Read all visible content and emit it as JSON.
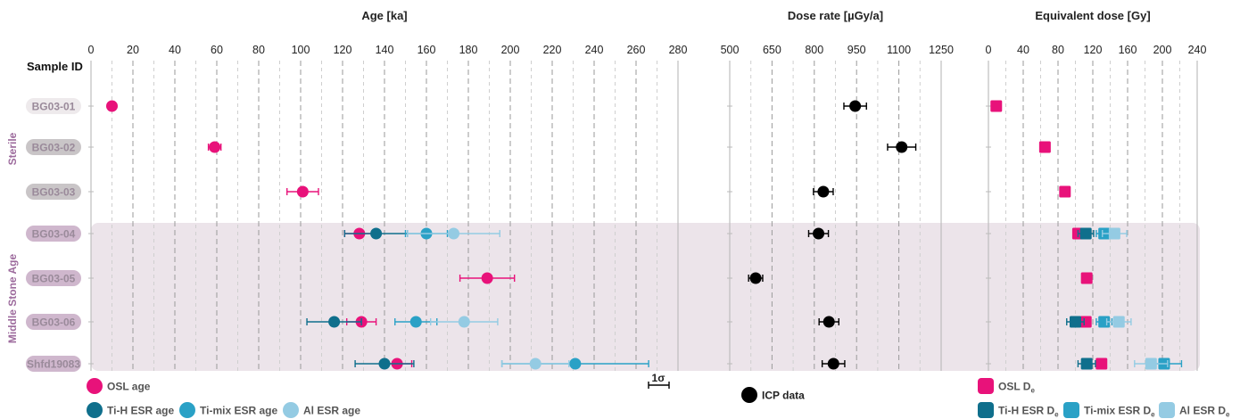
{
  "chart_data": {
    "type": "scatter",
    "row_header": "Sample ID",
    "groups": [
      {
        "name": "Sterile",
        "samples": [
          "BG03-01",
          "BG03-02",
          "BG03-03"
        ]
      },
      {
        "name": "Middle Stone Age",
        "samples": [
          "BG03-04",
          "BG03-05",
          "BG03-06",
          "Shfd19083"
        ]
      }
    ],
    "samples": [
      "BG03-01",
      "BG03-02",
      "BG03-03",
      "BG03-04",
      "BG03-05",
      "BG03-06",
      "Shfd19083"
    ],
    "panels": [
      {
        "id": "age",
        "title": "Age [ka]",
        "xlim": [
          0,
          280
        ],
        "ticks": [
          0,
          20,
          40,
          60,
          80,
          100,
          120,
          140,
          160,
          180,
          200,
          220,
          240,
          260,
          280
        ],
        "grid": true,
        "scale_bar_label": "1σ",
        "series": [
          {
            "name": "OSL age",
            "color": "#e8127a",
            "marker": "circle",
            "points": [
              {
                "sample": "BG03-01",
                "value": 10,
                "err": 0
              },
              {
                "sample": "BG03-02",
                "value": 59,
                "err": 3
              },
              {
                "sample": "BG03-03",
                "value": 101,
                "err": 7.5
              },
              {
                "sample": "BG03-04",
                "value": 128,
                "err": 7
              },
              {
                "sample": "BG03-05",
                "value": 189,
                "err": 13
              },
              {
                "sample": "BG03-06",
                "value": 129,
                "err": 7
              },
              {
                "sample": "Shfd19083",
                "value": 146,
                "err": 7
              }
            ]
          },
          {
            "name": "Ti-H ESR age",
            "color": "#0f6f8c",
            "marker": "circle",
            "points": [
              {
                "sample": "BG03-04",
                "value": 136,
                "err": 15
              },
              {
                "sample": "BG03-06",
                "value": 116,
                "err": 13
              },
              {
                "sample": "Shfd19083",
                "value": 140,
                "err": 14
              }
            ]
          },
          {
            "name": "Ti-mix ESR age",
            "color": "#2aa1c6",
            "marker": "circle",
            "points": [
              {
                "sample": "BG03-04",
                "value": 160,
                "err": 10
              },
              {
                "sample": "BG03-06",
                "value": 155,
                "err": 10
              },
              {
                "sample": "Shfd19083",
                "value": 231,
                "err": 35
              }
            ]
          },
          {
            "name": "Al ESR age",
            "color": "#94cbe3",
            "marker": "circle",
            "points": [
              {
                "sample": "BG03-04",
                "value": 173,
                "err": 22
              },
              {
                "sample": "BG03-06",
                "value": 178,
                "err": 16
              },
              {
                "sample": "Shfd19083",
                "value": 212,
                "err": 16
              }
            ]
          }
        ]
      },
      {
        "id": "dose_rate",
        "title": "Dose rate [µGy/a]",
        "xlim": [
          500,
          1250
        ],
        "ticks": [
          500,
          650,
          800,
          950,
          1100,
          1250
        ],
        "grid": true,
        "series": [
          {
            "name": "ICP data",
            "color": "#000000",
            "marker": "circle",
            "points": [
              {
                "sample": "BG03-01",
                "value": 945,
                "err": 40
              },
              {
                "sample": "BG03-02",
                "value": 1110,
                "err": 50
              },
              {
                "sample": "BG03-03",
                "value": 832,
                "err": 35
              },
              {
                "sample": "BG03-04",
                "value": 815,
                "err": 35
              },
              {
                "sample": "BG03-05",
                "value": 592,
                "err": 25
              },
              {
                "sample": "BG03-06",
                "value": 852,
                "err": 35
              },
              {
                "sample": "Shfd19083",
                "value": 868,
                "err": 40
              }
            ]
          }
        ]
      },
      {
        "id": "equivalent_dose",
        "title": "Equivalent dose [Gy]",
        "xlim": [
          0,
          240
        ],
        "ticks": [
          0,
          40,
          80,
          120,
          160,
          200,
          240
        ],
        "grid": true,
        "series": [
          {
            "name": "OSL De",
            "color": "#e8127a",
            "marker": "square",
            "points": [
              {
                "sample": "BG03-01",
                "value": 9,
                "err": 0
              },
              {
                "sample": "BG03-02",
                "value": 65,
                "err": 0
              },
              {
                "sample": "BG03-03",
                "value": 88,
                "err": 0
              },
              {
                "sample": "BG03-04",
                "value": 103,
                "err": 0
              },
              {
                "sample": "BG03-05",
                "value": 113,
                "err": 0
              },
              {
                "sample": "BG03-06",
                "value": 112,
                "err": 0
              },
              {
                "sample": "Shfd19083",
                "value": 130,
                "err": 0
              }
            ]
          },
          {
            "name": "Ti-H ESR De",
            "color": "#0f6f8c",
            "marker": "square",
            "points": [
              {
                "sample": "BG03-04",
                "value": 112,
                "err": 9
              },
              {
                "sample": "BG03-06",
                "value": 100,
                "err": 10
              },
              {
                "sample": "Shfd19083",
                "value": 113,
                "err": 10
              }
            ]
          },
          {
            "name": "Ti-mix ESR De",
            "color": "#2aa1c6",
            "marker": "square",
            "points": [
              {
                "sample": "BG03-04",
                "value": 133,
                "err": 9
              },
              {
                "sample": "BG03-06",
                "value": 133,
                "err": 9
              },
              {
                "sample": "Shfd19083",
                "value": 202,
                "err": 20
              }
            ]
          },
          {
            "name": "Al ESR De",
            "color": "#94cbe3",
            "marker": "square",
            "points": [
              {
                "sample": "BG03-04",
                "value": 145,
                "err": 14
              },
              {
                "sample": "BG03-06",
                "value": 150,
                "err": 14
              },
              {
                "sample": "Shfd19083",
                "value": 187,
                "err": 19
              }
            ]
          }
        ]
      }
    ],
    "legend": {
      "age": [
        {
          "label": "OSL age",
          "color": "#e8127a",
          "marker": "circle"
        },
        {
          "label": "Ti-H ESR age",
          "color": "#0f6f8c",
          "marker": "circle"
        },
        {
          "label": "Ti-mix ESR age",
          "color": "#2aa1c6",
          "marker": "circle"
        },
        {
          "label": "Al ESR age",
          "color": "#94cbe3",
          "marker": "circle"
        }
      ],
      "dose_rate": [
        {
          "label": "ICP data",
          "color": "#000000",
          "marker": "circle"
        }
      ],
      "equivalent_dose": [
        {
          "label": "OSL D",
          "sub": "e",
          "color": "#e8127a",
          "marker": "square"
        },
        {
          "label": "Ti-H ESR D",
          "sub": "e",
          "color": "#0f6f8c",
          "marker": "square"
        },
        {
          "label": "Ti-mix ESR D",
          "sub": "e",
          "color": "#2aa1c6",
          "marker": "square"
        },
        {
          "label": "Al ESR D",
          "sub": "e",
          "color": "#94cbe3",
          "marker": "square"
        }
      ]
    },
    "colors": {
      "shade": "#ece4ea",
      "grid": "#9a9a9a",
      "frame": "#bdbdbd"
    }
  }
}
